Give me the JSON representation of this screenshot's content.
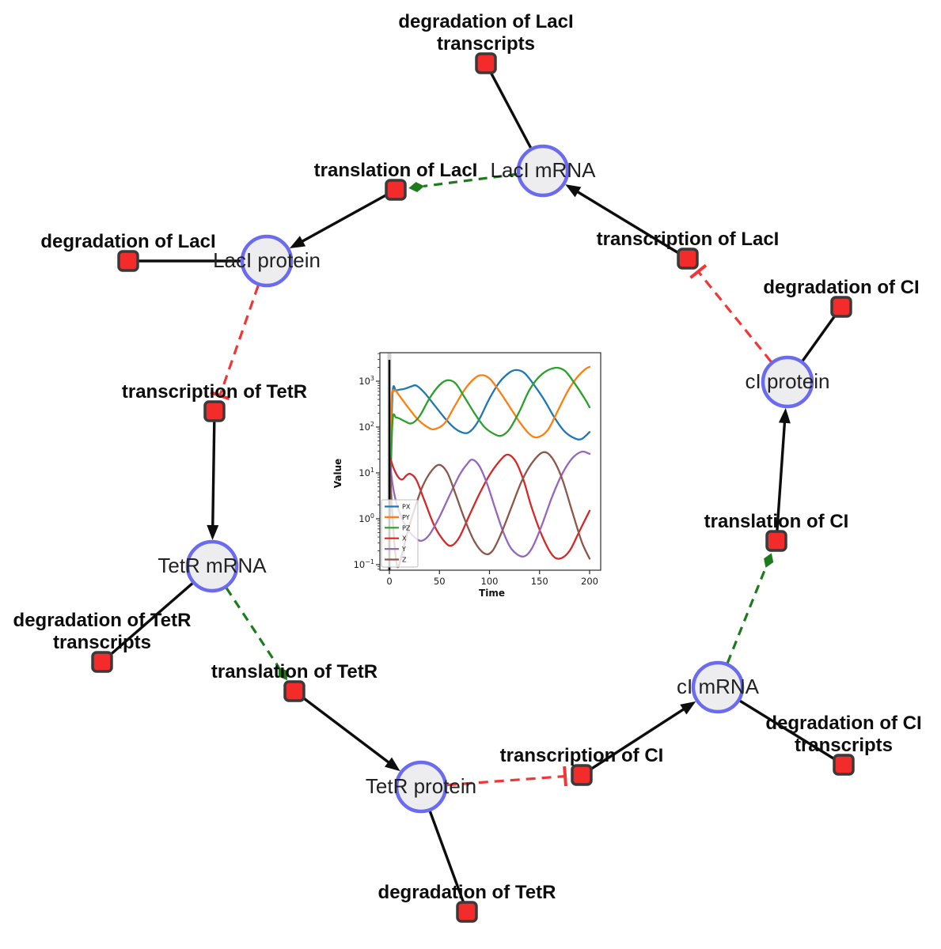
{
  "diagram": {
    "species": [
      {
        "id": "laci-mrna",
        "label": "LacI mRNA"
      },
      {
        "id": "laci-protein",
        "label": "LacI protein"
      },
      {
        "id": "tetr-mrna",
        "label": "TetR mRNA"
      },
      {
        "id": "tetr-protein",
        "label": "TetR protein"
      },
      {
        "id": "ci-mrna",
        "label": "cI mRNA"
      },
      {
        "id": "ci-protein",
        "label": "cI protein"
      }
    ],
    "reactions": [
      {
        "id": "deg-laci-transcripts",
        "lines": [
          "degradation of LacI",
          "transcripts"
        ]
      },
      {
        "id": "translation-laci",
        "lines": [
          "translation of LacI"
        ]
      },
      {
        "id": "deg-laci",
        "lines": [
          "degradation of LacI"
        ]
      },
      {
        "id": "transcription-tetr",
        "lines": [
          "transcription of TetR"
        ]
      },
      {
        "id": "deg-tetr-transcripts",
        "lines": [
          "degradation of TetR",
          "transcripts"
        ]
      },
      {
        "id": "translation-tetr",
        "lines": [
          "translation of TetR"
        ]
      },
      {
        "id": "deg-tetr",
        "lines": [
          "degradation of TetR"
        ]
      },
      {
        "id": "transcription-ci",
        "lines": [
          "transcription of CI"
        ]
      },
      {
        "id": "deg-ci-transcripts",
        "lines": [
          "degradation of CI",
          "transcripts"
        ]
      },
      {
        "id": "translation-ci",
        "lines": [
          "translation of CI"
        ]
      },
      {
        "id": "deg-ci",
        "lines": [
          "degradation of CI"
        ]
      },
      {
        "id": "transcription-laci",
        "lines": [
          "transcription of LacI"
        ]
      }
    ],
    "edges": [
      {
        "from": "laci-mrna",
        "to": "deg-laci-transcripts",
        "type": "reactant"
      },
      {
        "from": "laci-mrna",
        "to": "translation-laci",
        "type": "modifier"
      },
      {
        "from": "translation-laci",
        "to": "laci-protein",
        "type": "product"
      },
      {
        "from": "laci-protein",
        "to": "deg-laci",
        "type": "reactant"
      },
      {
        "from": "laci-protein",
        "to": "transcription-tetr",
        "type": "inhibition"
      },
      {
        "from": "transcription-tetr",
        "to": "tetr-mrna",
        "type": "product"
      },
      {
        "from": "tetr-mrna",
        "to": "deg-tetr-transcripts",
        "type": "reactant"
      },
      {
        "from": "tetr-mrna",
        "to": "translation-tetr",
        "type": "modifier"
      },
      {
        "from": "translation-tetr",
        "to": "tetr-protein",
        "type": "product"
      },
      {
        "from": "tetr-protein",
        "to": "deg-tetr",
        "type": "reactant"
      },
      {
        "from": "tetr-protein",
        "to": "transcription-ci",
        "type": "inhibition"
      },
      {
        "from": "transcription-ci",
        "to": "ci-mrna",
        "type": "product"
      },
      {
        "from": "ci-mrna",
        "to": "deg-ci-transcripts",
        "type": "reactant"
      },
      {
        "from": "ci-mrna",
        "to": "translation-ci",
        "type": "modifier"
      },
      {
        "from": "translation-ci",
        "to": "ci-protein",
        "type": "product"
      },
      {
        "from": "ci-protein",
        "to": "deg-ci",
        "type": "reactant"
      },
      {
        "from": "ci-protein",
        "to": "transcription-laci",
        "type": "inhibition"
      },
      {
        "from": "transcription-laci",
        "to": "laci-mrna",
        "type": "product"
      }
    ]
  },
  "colors": {
    "background": "#ffffff",
    "species_fill": "#ededef",
    "species_border": "#6b6bf0",
    "reaction_fill": "#f32b2b",
    "reaction_border": "#3a3a3a",
    "edge_black": "#0d0d0d",
    "edge_modifier_green": "#1d7a1d",
    "edge_inhibition_red": "#f23535",
    "label_color": "#0d0d0d"
  },
  "chart_data": {
    "type": "line",
    "title": "",
    "xlabel": "Time",
    "ylabel": "Value",
    "x_ticks": [
      0,
      50,
      100,
      150,
      200
    ],
    "xlim": [
      -10,
      210
    ],
    "y_scale": "log",
    "y_scale_base": 10,
    "y_ticks": [
      1000,
      100,
      10,
      1,
      0.1
    ],
    "ylim": [
      0.076,
      4200
    ],
    "grid": false,
    "legend_position": "lower left",
    "initial_transient_line_x": 0,
    "series": [
      {
        "name": "PX",
        "color": "#1f77b4",
        "x": [
          0.5,
          3,
          7,
          15,
          22,
          27,
          35,
          45,
          55,
          65,
          75,
          82,
          90,
          100,
          110,
          120,
          127,
          135,
          145,
          155,
          165,
          175,
          185,
          192,
          200
        ],
        "y": [
          1,
          450,
          620,
          680,
          770,
          800,
          560,
          300,
          160,
          95,
          74,
          85,
          150,
          420,
          950,
          1550,
          1750,
          1500,
          800,
          380,
          160,
          80,
          57,
          55,
          78
        ]
      },
      {
        "name": "PY",
        "color": "#ff7f0e",
        "x": [
          0.5,
          2,
          5,
          10,
          18,
          28,
          38,
          45,
          55,
          65,
          75,
          85,
          92,
          100,
          110,
          120,
          130,
          140,
          148,
          158,
          168,
          178,
          188,
          196,
          200
        ],
        "y": [
          1,
          300,
          620,
          480,
          280,
          150,
          100,
          90,
          120,
          280,
          650,
          1150,
          1350,
          1150,
          600,
          280,
          130,
          70,
          60,
          85,
          220,
          600,
          1250,
          1850,
          2050
        ]
      },
      {
        "name": "PZ",
        "color": "#2ca02c",
        "x": [
          0.5,
          3,
          7,
          15,
          22,
          30,
          40,
          50,
          58,
          66,
          75,
          85,
          95,
          105,
          112,
          120,
          130,
          140,
          152,
          165,
          175,
          185,
          195,
          200
        ],
        "y": [
          1,
          120,
          160,
          135,
          120,
          170,
          420,
          820,
          1050,
          900,
          450,
          200,
          100,
          70,
          65,
          90,
          220,
          650,
          1400,
          1950,
          1700,
          900,
          420,
          270
        ]
      },
      {
        "name": "X",
        "color": "#d62728",
        "x": [
          0,
          4,
          9,
          13,
          17,
          21,
          27,
          35,
          45,
          55,
          62,
          70,
          80,
          90,
          100,
          110,
          118,
          126,
          134,
          142,
          152,
          162,
          170,
          180,
          190,
          200
        ],
        "y": [
          25,
          13,
          8,
          7.2,
          8.8,
          9.5,
          7,
          2.5,
          0.7,
          0.32,
          0.26,
          0.4,
          1.2,
          3.5,
          9,
          18,
          25,
          18,
          7,
          1.8,
          0.45,
          0.17,
          0.135,
          0.2,
          0.55,
          1.5
        ]
      },
      {
        "name": "Y",
        "color": "#9467bd",
        "x": [
          0,
          3,
          7,
          12,
          18,
          25,
          32,
          40,
          50,
          60,
          70,
          78,
          83,
          90,
          98,
          106,
          114,
          122,
          133,
          142,
          152,
          162,
          172,
          182,
          192,
          200
        ],
        "y": [
          25,
          6,
          2.2,
          1.1,
          0.6,
          0.4,
          0.33,
          0.45,
          1.1,
          3.2,
          9,
          16,
          19.5,
          14,
          5.5,
          1.6,
          0.5,
          0.22,
          0.15,
          0.22,
          0.7,
          2.8,
          9,
          20,
          29,
          26
        ]
      },
      {
        "name": "Z",
        "color": "#8c564b",
        "x": [
          0,
          2,
          5,
          8,
          12,
          18,
          25,
          33,
          42,
          50,
          58,
          66,
          75,
          85,
          95,
          103,
          112,
          122,
          132,
          142,
          153,
          162,
          172,
          182,
          192,
          200
        ],
        "y": [
          25,
          3,
          0.3,
          0.09,
          0.15,
          0.5,
          1.6,
          5,
          11,
          15,
          10,
          3.5,
          1.0,
          0.32,
          0.175,
          0.2,
          0.5,
          1.8,
          6.5,
          16,
          28,
          22,
          8,
          1.6,
          0.32,
          0.135
        ]
      }
    ]
  }
}
